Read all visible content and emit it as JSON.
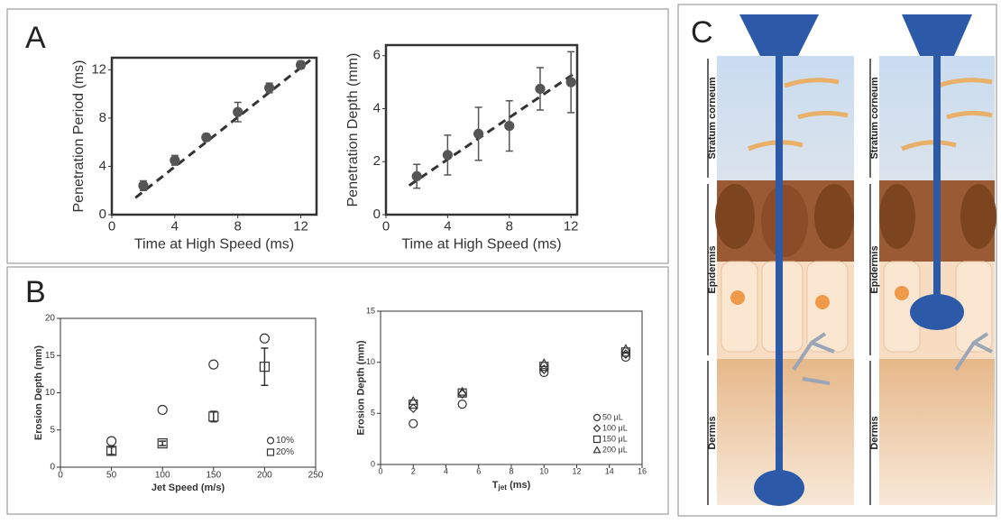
{
  "panel_labels": [
    "A",
    "B",
    "C"
  ],
  "chart_data": [
    {
      "type": "scatter",
      "x_label": "Time at High Speed (ms)",
      "y_label": "Penetration Period (ms)",
      "xlim": [
        0,
        13
      ],
      "ylim": [
        0,
        13
      ],
      "xticks": [
        0,
        4,
        8,
        12
      ],
      "yticks": [
        0,
        4,
        8,
        12
      ],
      "series": [
        {
          "marker": "filled-circle",
          "color": "#555555",
          "x": [
            2,
            4,
            6,
            8,
            10,
            12
          ],
          "y": [
            2.4,
            4.5,
            6.4,
            8.5,
            10.5,
            12.4
          ],
          "errors": [
            0.4,
            0.4,
            0.3,
            0.8,
            0.4,
            0.3
          ]
        }
      ],
      "fit": {
        "x": [
          1.5,
          12.6
        ],
        "y": [
          1.4,
          12.8
        ]
      }
    },
    {
      "type": "scatter",
      "x_label": "Time at High Speed (ms)",
      "y_label": "Penetration Depth (mm)",
      "xlim": [
        0,
        12.4
      ],
      "ylim": [
        0,
        6.4
      ],
      "xticks": [
        0,
        4,
        8,
        12
      ],
      "yticks": [
        0,
        2,
        4,
        6
      ],
      "series": [
        {
          "marker": "filled-circle",
          "color": "#555555",
          "x": [
            2,
            4,
            6,
            8,
            10,
            12
          ],
          "y": [
            1.45,
            2.25,
            3.05,
            3.35,
            4.75,
            5.0
          ],
          "errors": [
            0.45,
            0.75,
            1.0,
            0.95,
            0.8,
            1.15
          ]
        }
      ],
      "fit": {
        "x": [
          1.5,
          12.4
        ],
        "y": [
          1.1,
          5.4
        ]
      }
    },
    {
      "type": "scatter",
      "x_label": "Jet Speed (m/s)",
      "y_label": "Erosion Depth (mm)",
      "xlim": [
        0,
        250
      ],
      "ylim": [
        0,
        20
      ],
      "xticks": [
        0,
        50,
        100,
        150,
        200,
        250
      ],
      "yticks": [
        0,
        5,
        10,
        15,
        20
      ],
      "legend": "lower right",
      "series": [
        {
          "name": "10%",
          "marker": "circle",
          "color": "#333333",
          "x": [
            50,
            100,
            150,
            200
          ],
          "y": [
            3.5,
            7.7,
            13.8,
            17.3
          ]
        },
        {
          "name": "20%",
          "marker": "square",
          "color": "#333333",
          "x": [
            50,
            100,
            150,
            200
          ],
          "y": [
            2.2,
            3.2,
            6.8,
            13.5
          ],
          "errors": [
            0.5,
            0.3,
            0.7,
            2.5
          ]
        }
      ]
    },
    {
      "type": "scatter",
      "x_label": "T",
      "x_label_sub": "jet",
      "x_label_unit": "(ms)",
      "y_label": "Erosion Depth (mm)",
      "xlim": [
        0,
        16
      ],
      "ylim": [
        0,
        15
      ],
      "xticks": [
        0,
        2,
        4,
        6,
        8,
        10,
        12,
        14,
        16
      ],
      "yticks": [
        0,
        5,
        10,
        15
      ],
      "legend": "lower right",
      "series": [
        {
          "name": "50 μL",
          "marker": "circle",
          "color": "#333333",
          "x": [
            2,
            5,
            10,
            15
          ],
          "y": [
            4.0,
            5.9,
            9.0,
            10.5
          ]
        },
        {
          "name": "100 μL",
          "marker": "diamond",
          "color": "#333333",
          "x": [
            2,
            5,
            10,
            15
          ],
          "y": [
            5.5,
            6.9,
            9.3,
            10.8
          ]
        },
        {
          "name": "150 μL",
          "marker": "square",
          "color": "#333333",
          "x": [
            2,
            5,
            10,
            15
          ],
          "y": [
            5.9,
            7.0,
            9.6,
            11.0
          ]
        },
        {
          "name": "200 μL",
          "marker": "triangle",
          "color": "#333333",
          "x": [
            2,
            5,
            10,
            15
          ],
          "y": [
            6.2,
            7.1,
            9.9,
            11.3
          ]
        }
      ]
    }
  ],
  "diagram": {
    "left": {
      "layers": [
        "Stratum corneum",
        "Epidermis",
        "Dermis"
      ]
    },
    "right": {
      "layers": [
        "Stratum corneum",
        "Epidermis",
        "Dermis"
      ]
    }
  }
}
